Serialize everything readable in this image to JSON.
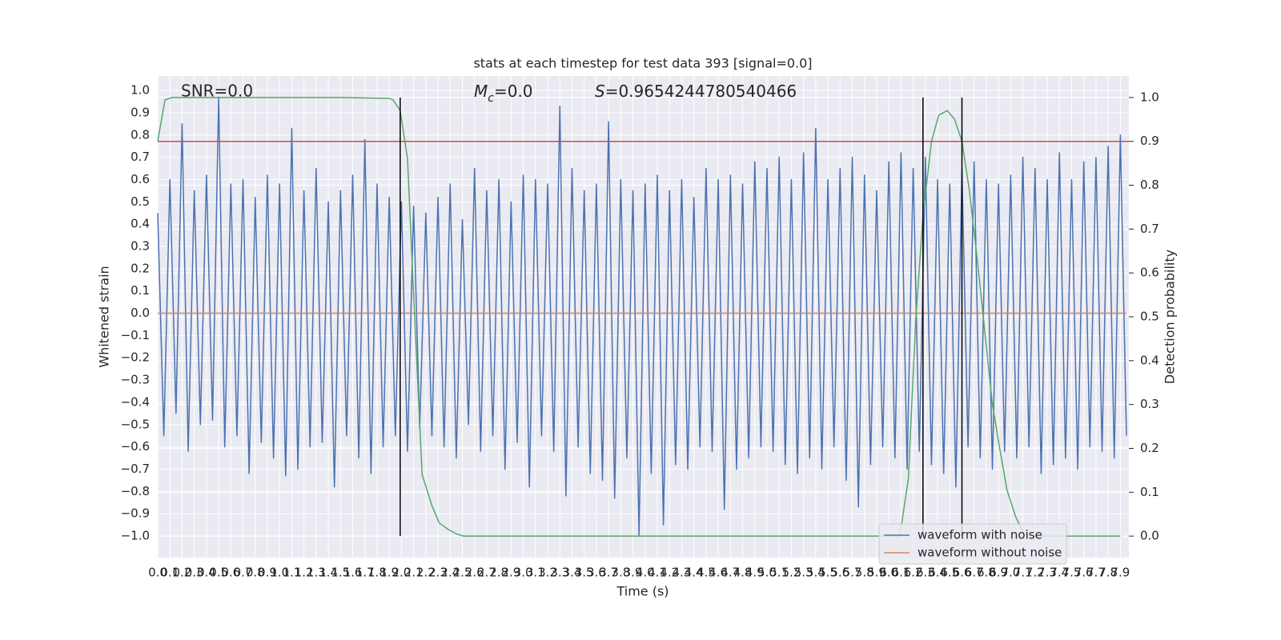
{
  "chart_data": {
    "type": "line",
    "title": "stats at each timestep for test data 393 [signal=0.0]",
    "xlabel": "Time (s)",
    "ylabel": "Whitened strain",
    "y2label": "Detection probability",
    "grid": true,
    "legend": "lower right",
    "xlim": [
      0,
      7.97
    ],
    "ylim": [
      -1.097,
      1.065
    ],
    "y2lim": [
      -0.049,
      1.049
    ],
    "xticks": [
      {
        "value": 0,
        "label": "0.0"
      },
      0.1,
      0.2,
      0.3,
      0.4,
      0.5,
      0.6,
      0.7,
      0.8,
      0.9,
      {
        "value": 1,
        "label": "1.0"
      },
      1.1,
      1.2,
      1.3,
      1.4,
      1.5,
      1.6,
      1.7,
      1.8,
      1.9,
      {
        "value": 2,
        "label": "2.0"
      },
      2.1,
      2.2,
      2.3,
      2.4,
      2.5,
      2.6,
      2.7,
      2.8,
      2.9,
      {
        "value": 3,
        "label": "3.0"
      },
      3.1,
      3.2,
      3.3,
      3.4,
      3.5,
      3.6,
      3.7,
      3.8,
      3.9,
      {
        "value": 4,
        "label": "4.0"
      },
      4.1,
      4.2,
      4.3,
      4.4,
      4.5,
      4.6,
      4.7,
      4.8,
      4.9,
      {
        "value": 5,
        "label": "5.0"
      },
      5.1,
      5.2,
      5.3,
      5.4,
      5.5,
      5.6,
      5.7,
      5.8,
      5.9,
      {
        "value": 6,
        "label": "6.0"
      },
      6.1,
      6.2,
      6.3,
      6.4,
      6.5,
      6.6,
      6.7,
      6.8,
      6.9,
      {
        "value": 7,
        "label": "7.0"
      },
      7.1,
      7.2,
      7.3,
      7.4,
      7.5,
      7.6,
      7.7,
      7.8,
      7.9
    ],
    "yticks": [
      {
        "value": 1,
        "label": "1.0"
      },
      0.9,
      0.8,
      0.7,
      0.6,
      0.5,
      0.4,
      0.3,
      0.2,
      0.1,
      {
        "value": 0,
        "label": "0.0"
      },
      {
        "value": -0.1,
        "label": "−0.1"
      },
      {
        "value": -0.2,
        "label": "−0.2"
      },
      {
        "value": -0.3,
        "label": "−0.3"
      },
      {
        "value": -0.4,
        "label": "−0.4"
      },
      {
        "value": -0.5,
        "label": "−0.5"
      },
      {
        "value": -0.6,
        "label": "−0.6"
      },
      {
        "value": -0.7,
        "label": "−0.7"
      },
      {
        "value": -0.8,
        "label": "−0.8"
      },
      {
        "value": -0.9,
        "label": "−0.9"
      },
      {
        "value": -1,
        "label": "−1.0"
      }
    ],
    "y2ticks": [
      {
        "value": 0,
        "label": "0.0"
      },
      0.1,
      0.2,
      0.3,
      0.4,
      0.5,
      0.6,
      0.7,
      0.8,
      0.9,
      {
        "value": 1,
        "label": "1.0"
      }
    ],
    "series": [
      {
        "name": "waveform with noise",
        "color": "#4c72b0",
        "x": [
          0,
          0.05,
          0.1,
          0.15,
          0.2,
          0.25,
          0.3,
          0.35,
          0.4,
          0.45,
          0.5,
          0.55,
          0.6,
          0.65,
          0.7,
          0.75,
          0.8,
          0.85,
          0.9,
          0.95,
          1,
          1.05,
          1.1,
          1.15,
          1.2,
          1.25,
          1.3,
          1.35,
          1.4,
          1.45,
          1.5,
          1.55,
          1.6,
          1.65,
          1.7,
          1.75,
          1.8,
          1.85,
          1.9,
          1.95,
          2,
          2.05,
          2.1,
          2.15,
          2.2,
          2.25,
          2.3,
          2.35,
          2.4,
          2.45,
          2.5,
          2.55,
          2.6,
          2.65,
          2.7,
          2.75,
          2.8,
          2.85,
          2.9,
          2.95,
          3,
          3.05,
          3.1,
          3.15,
          3.2,
          3.25,
          3.3,
          3.35,
          3.4,
          3.45,
          3.5,
          3.55,
          3.6,
          3.65,
          3.7,
          3.75,
          3.8,
          3.85,
          3.9,
          3.95,
          4,
          4.05,
          4.1,
          4.15,
          4.2,
          4.25,
          4.3,
          4.35,
          4.4,
          4.45,
          4.5,
          4.55,
          4.6,
          4.65,
          4.7,
          4.75,
          4.8,
          4.85,
          4.9,
          4.95,
          5,
          5.05,
          5.1,
          5.15,
          5.2,
          5.25,
          5.3,
          5.35,
          5.4,
          5.45,
          5.5,
          5.55,
          5.6,
          5.65,
          5.7,
          5.75,
          5.8,
          5.85,
          5.9,
          5.95,
          6,
          6.05,
          6.1,
          6.15,
          6.2,
          6.25,
          6.3,
          6.35,
          6.4,
          6.45,
          6.5,
          6.55,
          6.6,
          6.65,
          6.7,
          6.75,
          6.8,
          6.85,
          6.9,
          6.95,
          7,
          7.05,
          7.1,
          7.15,
          7.2,
          7.25,
          7.3,
          7.35,
          7.4,
          7.45,
          7.5,
          7.55,
          7.6,
          7.65,
          7.7,
          7.75,
          7.8,
          7.85,
          7.9,
          7.95
        ],
        "values": [
          0.45,
          -0.55,
          0.6,
          -0.45,
          0.85,
          -0.62,
          0.55,
          -0.5,
          0.62,
          -0.48,
          0.97,
          -0.6,
          0.58,
          -0.55,
          0.6,
          -0.72,
          0.52,
          -0.58,
          0.62,
          -0.65,
          0.58,
          -0.73,
          0.83,
          -0.7,
          0.55,
          -0.6,
          0.65,
          -0.58,
          0.5,
          -0.78,
          0.55,
          -0.55,
          0.62,
          -0.65,
          0.78,
          -0.72,
          0.58,
          -0.6,
          0.52,
          -0.55,
          0.5,
          -0.62,
          0.48,
          -0.52,
          0.45,
          -0.55,
          0.52,
          -0.6,
          0.58,
          -0.65,
          0.42,
          -0.5,
          0.65,
          -0.62,
          0.55,
          -0.55,
          0.6,
          -0.7,
          0.5,
          -0.58,
          0.62,
          -0.78,
          0.6,
          -0.55,
          0.58,
          -0.62,
          0.93,
          -0.82,
          0.65,
          -0.6,
          0.55,
          -0.72,
          0.58,
          -0.75,
          0.86,
          -0.83,
          0.6,
          -0.65,
          0.55,
          -1.0,
          0.58,
          -0.72,
          0.62,
          -0.95,
          0.55,
          -0.68,
          0.6,
          -0.7,
          0.52,
          -0.6,
          0.65,
          -0.62,
          0.6,
          -0.88,
          0.62,
          -0.7,
          0.58,
          -0.65,
          0.68,
          -0.6,
          0.65,
          -0.62,
          0.7,
          -0.68,
          0.6,
          -0.72,
          0.72,
          -0.65,
          0.83,
          -0.7,
          0.6,
          -0.6,
          0.65,
          -0.75,
          0.7,
          -0.87,
          0.62,
          -0.68,
          0.55,
          -0.6,
          0.68,
          -0.65,
          0.72,
          -0.7,
          0.65,
          -0.62,
          0.7,
          -0.68,
          0.6,
          -0.72,
          0.58,
          -0.78,
          0.65,
          -0.6,
          0.68,
          -0.65,
          0.6,
          -0.7,
          0.58,
          -0.62,
          0.62,
          -0.65,
          0.7,
          -0.6,
          0.65,
          -0.72,
          0.6,
          -0.68,
          0.72,
          -0.65,
          0.6,
          -0.7,
          0.68,
          -0.6,
          0.7,
          -0.62,
          0.75,
          -0.65,
          0.8,
          -0.55
        ]
      },
      {
        "name": "waveform without noise",
        "color": "#dd8452",
        "x": [
          0,
          7.95
        ],
        "values": [
          0,
          0
        ]
      },
      {
        "color": "#55a868",
        "axis": "y2",
        "x": [
          0,
          0.06,
          0.12,
          0.5,
          1.0,
          1.5,
          1.9,
          1.93,
          1.99,
          2.05,
          2.11,
          2.17,
          2.25,
          2.31,
          2.38,
          2.45,
          2.51,
          3.5,
          4.5,
          5.5,
          6.09,
          6.16,
          6.22,
          6.28,
          6.35,
          6.41,
          6.48,
          6.54,
          6.6,
          6.66,
          6.73,
          6.79,
          6.85,
          6.91,
          6.97,
          7.04,
          7.1,
          7.16,
          7.5,
          7.9
        ],
        "values": [
          0.9,
          0.995,
          1.0,
          1.0,
          1.0,
          1.0,
          0.998,
          0.995,
          0.97,
          0.86,
          0.49,
          0.14,
          0.07,
          0.03,
          0.016,
          0.005,
          0,
          0,
          0,
          0,
          0,
          0.13,
          0.49,
          0.73,
          0.9,
          0.96,
          0.97,
          0.95,
          0.9,
          0.79,
          0.62,
          0.46,
          0.3,
          0.2,
          0.105,
          0.045,
          0.01,
          0,
          0,
          0
        ]
      }
    ],
    "hlines": [
      {
        "axis": "y2",
        "value": 0.9,
        "color": "#c44e52"
      }
    ],
    "vlines": {
      "x": [
        1.99,
        6.28,
        6.6
      ],
      "y2_range": [
        0,
        1
      ],
      "color": "#000000"
    },
    "annotations": [
      {
        "text": "SNR=0.0"
      },
      {
        "symbol": "M",
        "subscript": "c",
        "text": "=0.0"
      },
      {
        "symbol": "S",
        "text": "=0.9654244780540466"
      }
    ]
  }
}
